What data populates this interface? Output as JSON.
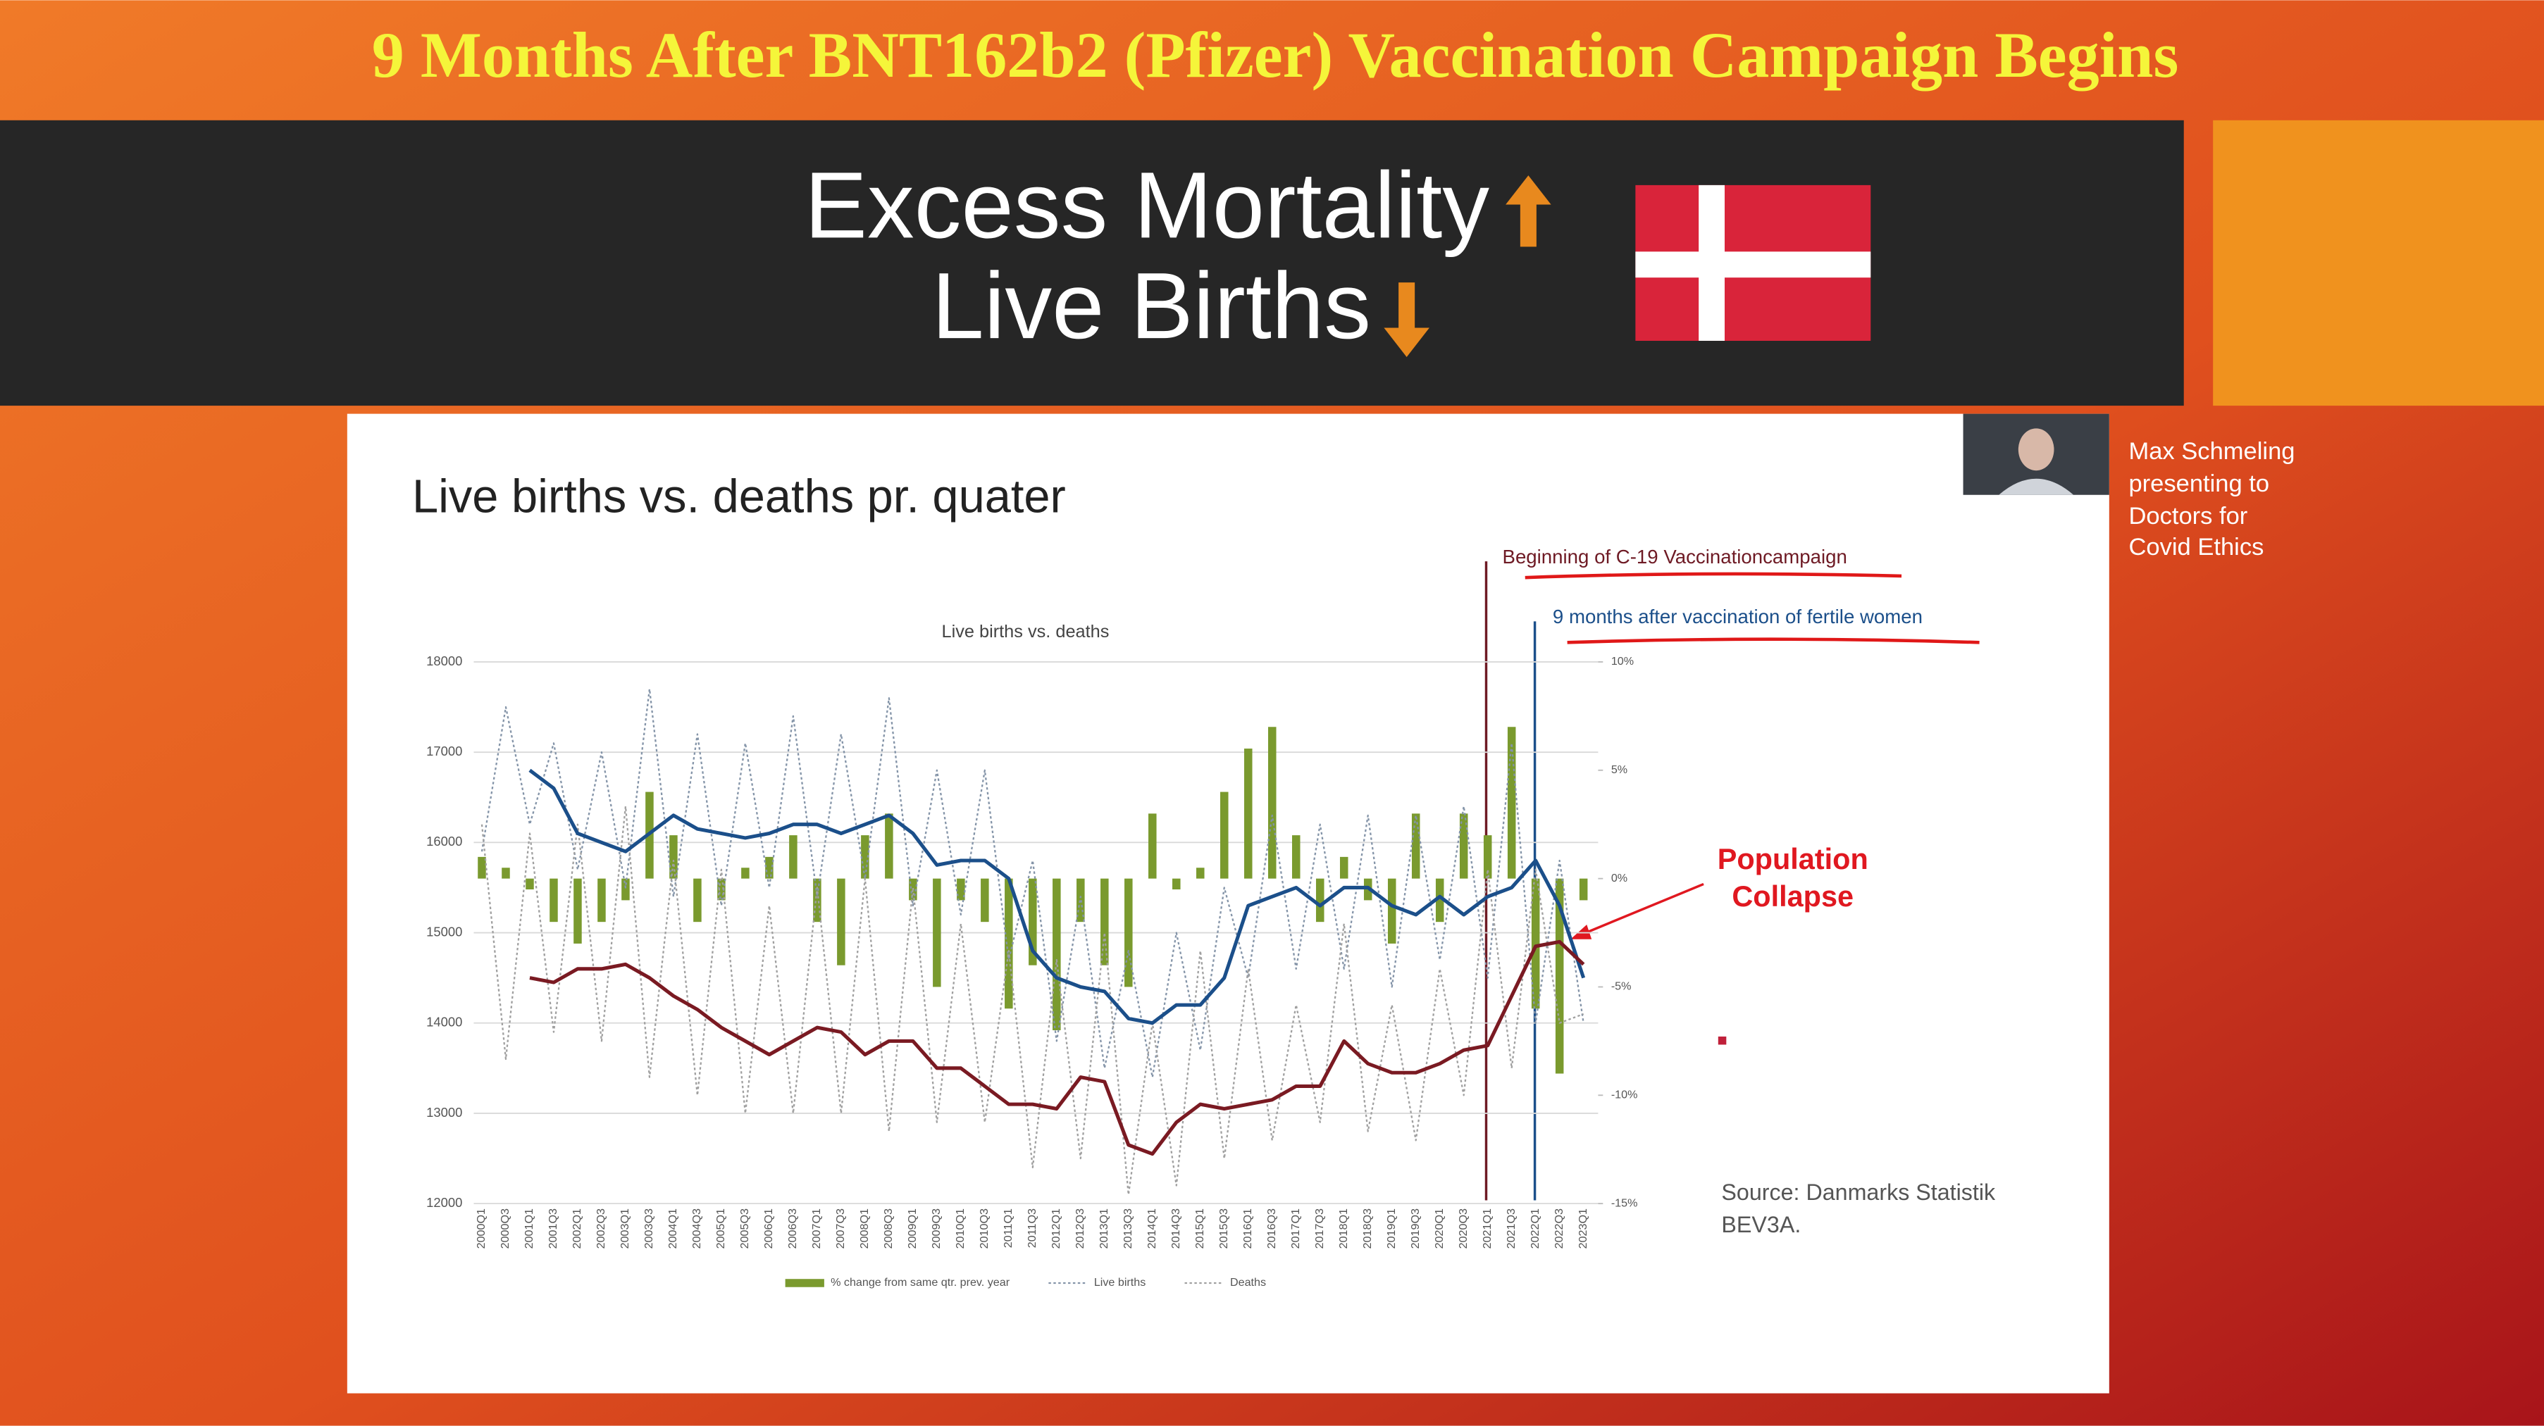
{
  "slide": {
    "title": "9 Months After BNT162b2 (Pfizer) Vaccination Campaign Begins",
    "heading": [
      "Excess Mortality",
      "Live Births"
    ],
    "presenter": [
      "Max Schmeling",
      "presenting to",
      "Doctors for",
      "Covid Ethics"
    ]
  },
  "chart_data": {
    "type": "line",
    "title": "Live births vs. deaths pr. quater",
    "subtitle": "Live births vs. deaths",
    "annotations": [
      "Beginning of C-19 Vaccinationcampaign",
      "9 months after vaccination of fertile women"
    ],
    "callout": [
      "Population",
      "Collapse"
    ],
    "source": [
      "Source: Danmarks Statistik",
      "BEV3A."
    ],
    "categories": [
      "2000Q1",
      "2000Q3",
      "2001Q1",
      "2001Q3",
      "2002Q1",
      "2002Q3",
      "2003Q1",
      "2003Q3",
      "2004Q1",
      "2004Q3",
      "2005Q1",
      "2005Q3",
      "2006Q1",
      "2006Q3",
      "2007Q1",
      "2007Q3",
      "2008Q1",
      "2008Q3",
      "2009Q1",
      "2009Q3",
      "2010Q1",
      "2010Q3",
      "2011Q1",
      "2011Q3",
      "2012Q1",
      "2012Q3",
      "2013Q1",
      "2013Q3",
      "2014Q1",
      "2014Q3",
      "2015Q1",
      "2015Q3",
      "2016Q1",
      "2016Q3",
      "2017Q1",
      "2017Q3",
      "2018Q1",
      "2018Q3",
      "2019Q1",
      "2019Q3",
      "2020Q1",
      "2020Q3",
      "2021Q1",
      "2021Q3",
      "2022Q1",
      "2022Q3",
      "2023Q1"
    ],
    "series": [
      {
        "name": "% change from same qtr. prev. year",
        "type": "bar",
        "axis": "y2",
        "color": "#7a9a2e",
        "values": [
          1,
          0.5,
          -0.5,
          -2,
          -3,
          -2,
          -1,
          4,
          2,
          -2,
          -1,
          0.5,
          1,
          2,
          -2,
          -4,
          2,
          3,
          -1,
          -5,
          -1,
          -2,
          -6,
          -4,
          -7,
          -2,
          -4,
          -5,
          3,
          -0.5,
          0.5,
          4,
          6,
          7,
          2,
          -2,
          1,
          -1,
          -3,
          3,
          -2,
          3,
          2,
          7,
          -6,
          -9,
          -1
        ]
      },
      {
        "name": "Live births",
        "color": "#8494a8",
        "dash": "dotted",
        "values": [
          15900,
          17500,
          16200,
          17100,
          15700,
          17000,
          15500,
          17700,
          15400,
          17200,
          15300,
          17100,
          15500,
          17400,
          15400,
          17200,
          15600,
          17600,
          15300,
          16800,
          15200,
          16800,
          14700,
          15800,
          13800,
          15400,
          13500,
          14800,
          13400,
          15000,
          13700,
          15500,
          14500,
          16300,
          14600,
          16200,
          14600,
          16300,
          14400,
          16300,
          14700,
          16400,
          14500,
          17100,
          14000,
          15800,
          14000
        ]
      },
      {
        "name": "Deaths",
        "color": "#a0a0a0",
        "dash": "dotted",
        "values": [
          16200,
          13600,
          16100,
          13900,
          16200,
          13800,
          16400,
          13400,
          15800,
          13200,
          15700,
          13000,
          15300,
          13000,
          15500,
          13000,
          15600,
          12800,
          15500,
          12900,
          15100,
          12900,
          14800,
          12400,
          14700,
          12500,
          15000,
          12100,
          14000,
          12200,
          14800,
          12500,
          14600,
          12700,
          14200,
          12900,
          15100,
          12800,
          14200,
          12700,
          14600,
          13200,
          15700,
          13500,
          15700,
          14000,
          14100
        ]
      },
      {
        "color": "#1b4f8a",
        "values": [
          null,
          null,
          16800,
          16600,
          16100,
          16000,
          15900,
          16100,
          16300,
          16150,
          16100,
          16050,
          16100,
          16200,
          16200,
          16100,
          16200,
          16300,
          16100,
          15750,
          15800,
          15800,
          15600,
          14800,
          14500,
          14400,
          14350,
          14050,
          14000,
          14200,
          14200,
          14500,
          15300,
          15400,
          15500,
          15300,
          15500,
          15500,
          15300,
          15200,
          15400,
          15200,
          15400,
          15500,
          15800,
          15300,
          14500
        ]
      },
      {
        "color": "#7a1a22",
        "values": [
          null,
          null,
          14500,
          14450,
          14600,
          14600,
          14650,
          14500,
          14300,
          14150,
          13950,
          13800,
          13650,
          13800,
          13950,
          13900,
          13650,
          13800,
          13800,
          13500,
          13500,
          13300,
          13100,
          13100,
          13050,
          13400,
          13350,
          12650,
          12550,
          12900,
          13100,
          13050,
          13100,
          13150,
          13300,
          13300,
          13800,
          13550,
          13450,
          13450,
          13550,
          13700,
          13750,
          14300,
          14850,
          14900,
          14650
        ]
      }
    ],
    "ylim": [
      12000,
      18000
    ],
    "yticks": [
      12000,
      13000,
      14000,
      15000,
      16000,
      17000,
      18000
    ],
    "y2lim": [
      -15,
      10
    ],
    "y2ticks": [
      {
        "value": -15,
        "label": "-15%"
      },
      {
        "value": -10,
        "label": "-10%"
      },
      {
        "value": -5,
        "label": "-5%"
      },
      {
        "value": 0,
        "label": "0%"
      },
      {
        "value": 5,
        "label": "5%"
      },
      {
        "value": 10,
        "label": "10%"
      }
    ],
    "grid": true
  }
}
